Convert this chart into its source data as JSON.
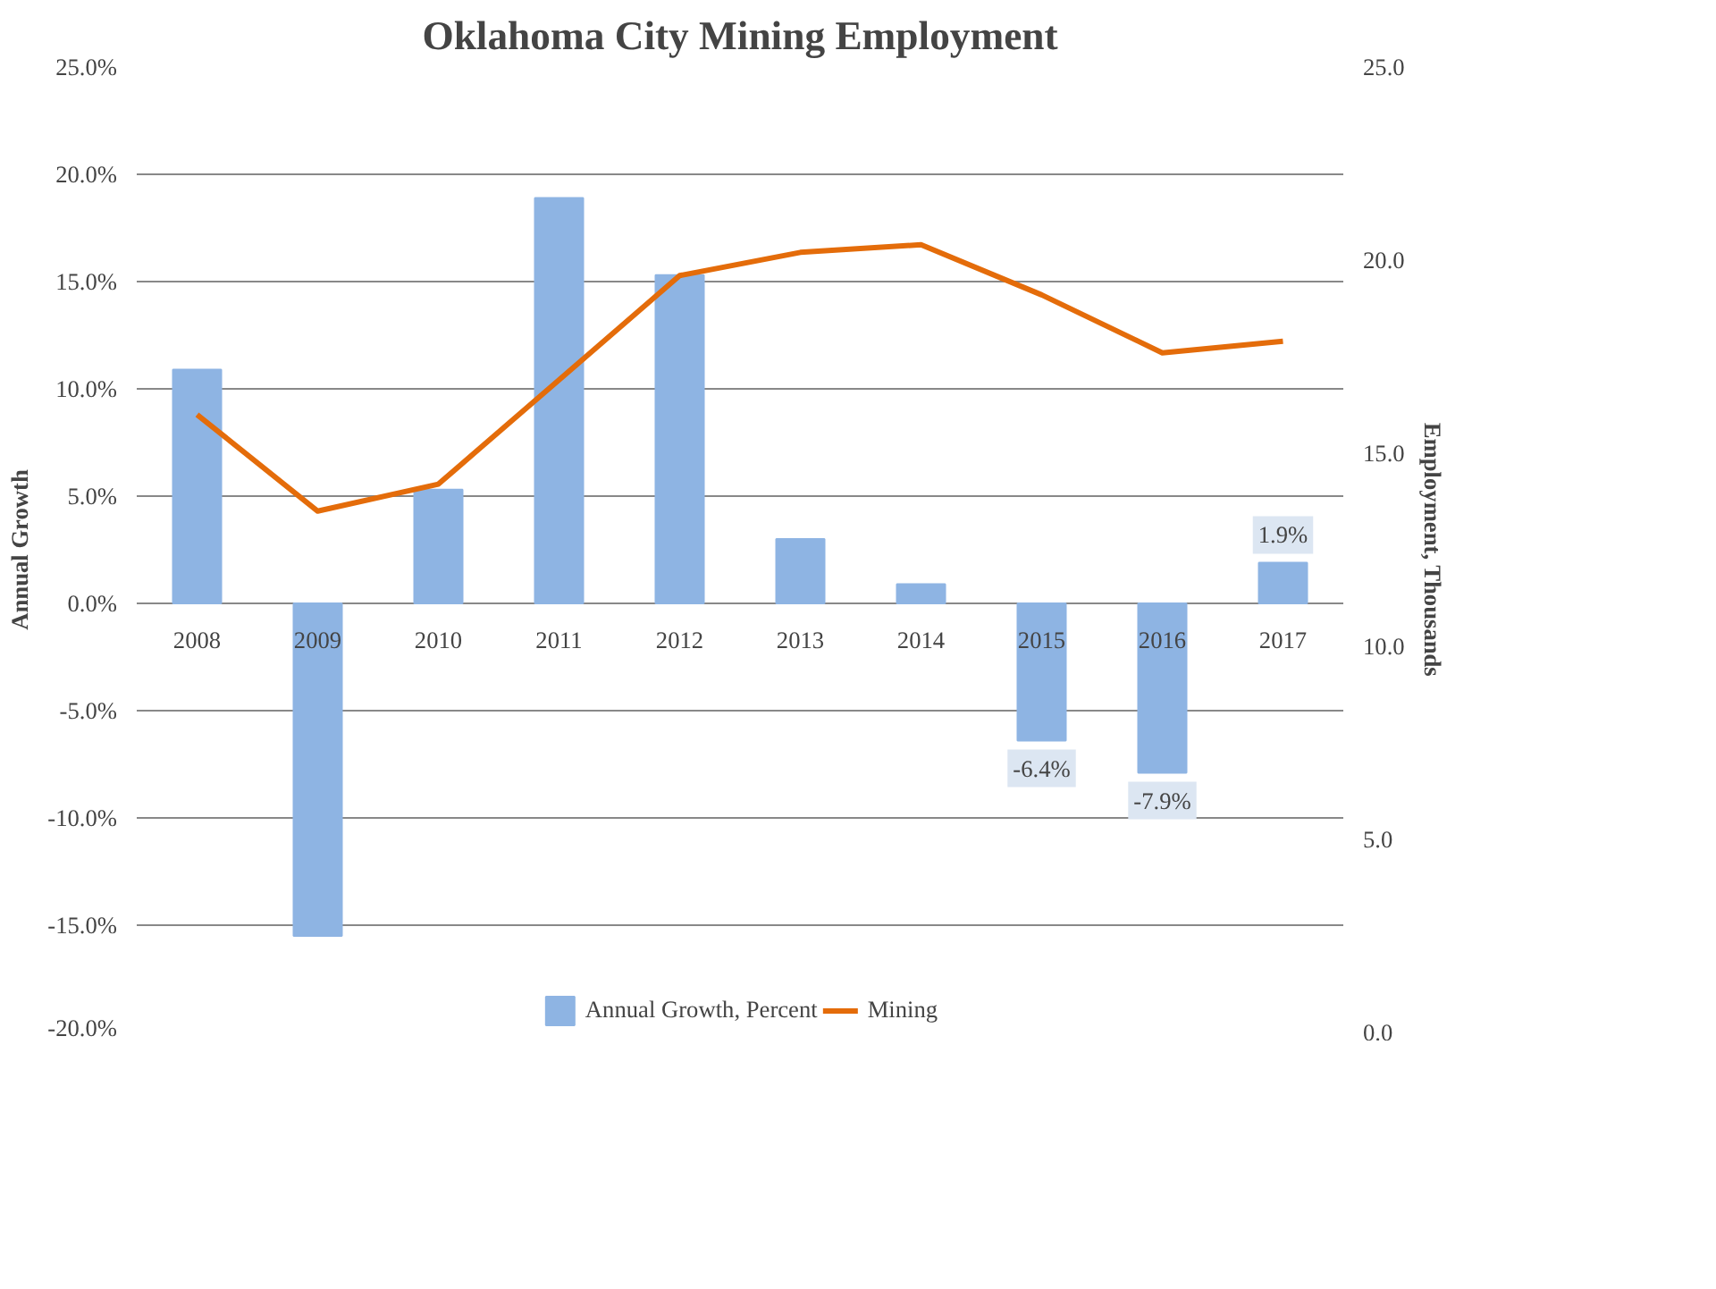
{
  "chart_data": {
    "type": "bar",
    "title": "Oklahoma City Mining Employment",
    "ylabel": "Annual Growth",
    "y2label": "Employment, Thousands",
    "categories": [
      "2008",
      "2009",
      "2010",
      "2011",
      "2012",
      "2013",
      "2014",
      "2015",
      "2016",
      "2017"
    ],
    "series": [
      {
        "name": "Annual Growth, Percent",
        "color": "#8eb4e3",
        "values": [
          10.9,
          -15.5,
          5.3,
          18.9,
          15.3,
          3.0,
          0.9,
          -6.4,
          -7.9,
          1.9
        ],
        "value_labels": [
          null,
          null,
          null,
          null,
          null,
          null,
          null,
          "-6.4%",
          "-7.9%",
          "1.9%"
        ]
      },
      {
        "name": "Mining",
        "type": "line",
        "axis": "y2",
        "color": "#e46c0a",
        "values": [
          16.0,
          13.5,
          14.2,
          16.9,
          19.6,
          20.2,
          20.4,
          19.1,
          17.6,
          17.9
        ]
      }
    ],
    "ylim": [
      -20,
      25
    ],
    "yticks": [
      {
        "value": -20,
        "label": "-20.0%"
      },
      {
        "value": -15,
        "label": "-15.0%"
      },
      {
        "value": -10,
        "label": "-10.0%"
      },
      {
        "value": -5,
        "label": "-5.0%"
      },
      {
        "value": 0,
        "label": "0.0%"
      },
      {
        "value": 5,
        "label": "5.0%"
      },
      {
        "value": 10,
        "label": "10.0%"
      },
      {
        "value": 15,
        "label": "15.0%"
      },
      {
        "value": 20,
        "label": "20.0%"
      },
      {
        "value": 25,
        "label": "25.0%"
      }
    ],
    "y2lim": [
      0,
      25
    ],
    "y2ticks": [
      {
        "value": 0,
        "label": "0.0"
      },
      {
        "value": 5,
        "label": "5.0"
      },
      {
        "value": 10,
        "label": "10.0"
      },
      {
        "value": 15,
        "label": "15.0"
      },
      {
        "value": 20,
        "label": "20.0"
      },
      {
        "value": 25,
        "label": "25.0"
      }
    ],
    "grid": "y",
    "legend": "bottom"
  }
}
